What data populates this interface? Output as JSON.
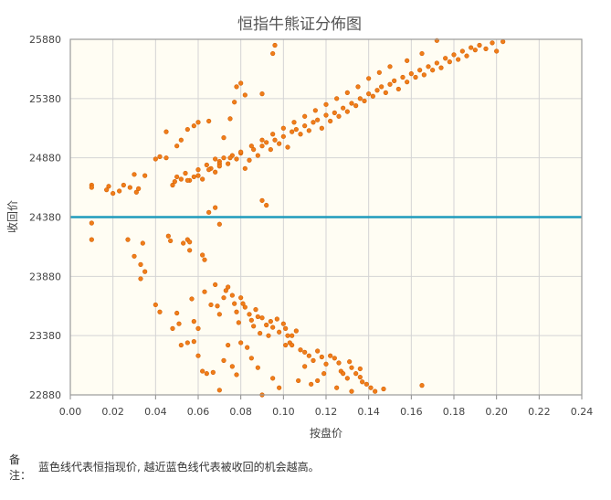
{
  "chart_data": {
    "type": "scatter",
    "title": "恒指牛熊证分佈图",
    "xlabel": "按盘价",
    "ylabel": "收回价",
    "xlim": [
      0,
      0.24
    ],
    "ylim": [
      22880,
      25880
    ],
    "x_ticks": [
      "0.00",
      "0.02",
      "0.04",
      "0.06",
      "0.08",
      "0.10",
      "0.12",
      "0.14",
      "0.16",
      "0.18",
      "0.20",
      "0.22",
      "0.24"
    ],
    "y_ticks": [
      "22880",
      "23380",
      "23880",
      "24380",
      "24880",
      "25380",
      "25880"
    ],
    "reference_line": {
      "y": 24380,
      "color": "#1f9bbd",
      "meaning": "恒指现价"
    },
    "grid": true,
    "background": "#fffdf3",
    "point_color": "#f07d1a",
    "point_stroke": "#d25f00",
    "series": [
      {
        "values": [
          [
            0.01,
            24330
          ],
          [
            0.01,
            24190
          ],
          [
            0.027,
            24190
          ],
          [
            0.03,
            24050
          ],
          [
            0.033,
            23980
          ],
          [
            0.034,
            24160
          ],
          [
            0.035,
            23920
          ],
          [
            0.033,
            23860
          ],
          [
            0.04,
            23640
          ],
          [
            0.042,
            23580
          ],
          [
            0.046,
            24220
          ],
          [
            0.047,
            24180
          ],
          [
            0.05,
            23570
          ],
          [
            0.051,
            23480
          ],
          [
            0.053,
            24160
          ],
          [
            0.055,
            24190
          ],
          [
            0.056,
            24170
          ],
          [
            0.056,
            24100
          ],
          [
            0.057,
            23690
          ],
          [
            0.058,
            23500
          ],
          [
            0.06,
            23440
          ],
          [
            0.062,
            24060
          ],
          [
            0.063,
            24020
          ],
          [
            0.063,
            23750
          ],
          [
            0.066,
            23640
          ],
          [
            0.068,
            23810
          ],
          [
            0.069,
            23630
          ],
          [
            0.07,
            23560
          ],
          [
            0.072,
            23700
          ],
          [
            0.073,
            23760
          ],
          [
            0.074,
            23790
          ],
          [
            0.076,
            23720
          ],
          [
            0.077,
            23650
          ],
          [
            0.078,
            23580
          ],
          [
            0.079,
            23490
          ],
          [
            0.08,
            23700
          ],
          [
            0.081,
            23650
          ],
          [
            0.082,
            23620
          ],
          [
            0.084,
            23560
          ],
          [
            0.085,
            23510
          ],
          [
            0.086,
            23460
          ],
          [
            0.087,
            23600
          ],
          [
            0.088,
            23540
          ],
          [
            0.089,
            23400
          ],
          [
            0.09,
            23530
          ],
          [
            0.092,
            23470
          ],
          [
            0.093,
            23380
          ],
          [
            0.094,
            23500
          ],
          [
            0.095,
            23450
          ],
          [
            0.097,
            23520
          ],
          [
            0.098,
            23410
          ],
          [
            0.1,
            23480
          ],
          [
            0.101,
            23440
          ],
          [
            0.102,
            23380
          ],
          [
            0.103,
            23320
          ],
          [
            0.104,
            23300
          ],
          [
            0.106,
            23420
          ],
          [
            0.108,
            23260
          ],
          [
            0.11,
            23240
          ],
          [
            0.112,
            23210
          ],
          [
            0.114,
            23170
          ],
          [
            0.116,
            23250
          ],
          [
            0.118,
            23200
          ],
          [
            0.12,
            23140
          ],
          [
            0.122,
            23210
          ],
          [
            0.124,
            23190
          ],
          [
            0.126,
            23150
          ],
          [
            0.127,
            23080
          ],
          [
            0.128,
            23060
          ],
          [
            0.13,
            23020
          ],
          [
            0.131,
            23160
          ],
          [
            0.132,
            23110
          ],
          [
            0.134,
            23060
          ],
          [
            0.136,
            23030
          ],
          [
            0.137,
            22990
          ],
          [
            0.139,
            22970
          ],
          [
            0.141,
            22940
          ],
          [
            0.143,
            22910
          ],
          [
            0.147,
            22930
          ],
          [
            0.165,
            22960
          ],
          [
            0.048,
            23440
          ],
          [
            0.052,
            23300
          ],
          [
            0.055,
            23320
          ],
          [
            0.058,
            23330
          ],
          [
            0.06,
            23210
          ],
          [
            0.062,
            23080
          ],
          [
            0.064,
            23060
          ],
          [
            0.067,
            23070
          ],
          [
            0.07,
            22920
          ],
          [
            0.072,
            23170
          ],
          [
            0.074,
            23300
          ],
          [
            0.076,
            23120
          ],
          [
            0.078,
            23050
          ],
          [
            0.08,
            23320
          ],
          [
            0.083,
            23280
          ],
          [
            0.085,
            23190
          ],
          [
            0.088,
            23110
          ],
          [
            0.09,
            22880
          ],
          [
            0.095,
            23020
          ],
          [
            0.098,
            22940
          ],
          [
            0.101,
            23300
          ],
          [
            0.104,
            23380
          ],
          [
            0.107,
            23000
          ],
          [
            0.11,
            23120
          ],
          [
            0.113,
            22970
          ],
          [
            0.116,
            23000
          ],
          [
            0.119,
            23060
          ],
          [
            0.125,
            22940
          ],
          [
            0.132,
            22910
          ],
          [
            0.136,
            23100
          ],
          [
            0.01,
            24650
          ],
          [
            0.01,
            24630
          ],
          [
            0.017,
            24610
          ],
          [
            0.018,
            24640
          ],
          [
            0.02,
            24580
          ],
          [
            0.023,
            24600
          ],
          [
            0.025,
            24650
          ],
          [
            0.028,
            24630
          ],
          [
            0.03,
            24740
          ],
          [
            0.031,
            24590
          ],
          [
            0.032,
            24620
          ],
          [
            0.035,
            24730
          ],
          [
            0.04,
            24870
          ],
          [
            0.042,
            24890
          ],
          [
            0.045,
            24880
          ],
          [
            0.048,
            24650
          ],
          [
            0.049,
            24680
          ],
          [
            0.05,
            24720
          ],
          [
            0.052,
            24700
          ],
          [
            0.054,
            24750
          ],
          [
            0.056,
            24690
          ],
          [
            0.058,
            24720
          ],
          [
            0.06,
            24780
          ],
          [
            0.062,
            24700
          ],
          [
            0.064,
            24820
          ],
          [
            0.066,
            24790
          ],
          [
            0.068,
            24760
          ],
          [
            0.07,
            24850
          ],
          [
            0.072,
            24880
          ],
          [
            0.074,
            24830
          ],
          [
            0.076,
            24900
          ],
          [
            0.078,
            24870
          ],
          [
            0.08,
            24920
          ],
          [
            0.082,
            24790
          ],
          [
            0.084,
            24860
          ],
          [
            0.086,
            24950
          ],
          [
            0.088,
            24900
          ],
          [
            0.09,
            24980
          ],
          [
            0.092,
            25010
          ],
          [
            0.094,
            24950
          ],
          [
            0.096,
            25030
          ],
          [
            0.098,
            25000
          ],
          [
            0.1,
            25060
          ],
          [
            0.102,
            24970
          ],
          [
            0.104,
            25100
          ],
          [
            0.106,
            25120
          ],
          [
            0.108,
            25080
          ],
          [
            0.11,
            25150
          ],
          [
            0.112,
            25110
          ],
          [
            0.114,
            25180
          ],
          [
            0.116,
            25200
          ],
          [
            0.118,
            25130
          ],
          [
            0.12,
            25240
          ],
          [
            0.122,
            25190
          ],
          [
            0.124,
            25260
          ],
          [
            0.126,
            25230
          ],
          [
            0.128,
            25300
          ],
          [
            0.13,
            25270
          ],
          [
            0.132,
            25340
          ],
          [
            0.134,
            25320
          ],
          [
            0.136,
            25380
          ],
          [
            0.138,
            25360
          ],
          [
            0.14,
            25420
          ],
          [
            0.142,
            25400
          ],
          [
            0.144,
            25450
          ],
          [
            0.146,
            25480
          ],
          [
            0.148,
            25430
          ],
          [
            0.15,
            25500
          ],
          [
            0.152,
            25530
          ],
          [
            0.154,
            25460
          ],
          [
            0.156,
            25560
          ],
          [
            0.158,
            25520
          ],
          [
            0.16,
            25590
          ],
          [
            0.162,
            25560
          ],
          [
            0.164,
            25620
          ],
          [
            0.166,
            25580
          ],
          [
            0.168,
            25650
          ],
          [
            0.17,
            25620
          ],
          [
            0.172,
            25680
          ],
          [
            0.174,
            25640
          ],
          [
            0.176,
            25720
          ],
          [
            0.178,
            25690
          ],
          [
            0.18,
            25750
          ],
          [
            0.182,
            25710
          ],
          [
            0.184,
            25780
          ],
          [
            0.186,
            25740
          ],
          [
            0.188,
            25810
          ],
          [
            0.19,
            25790
          ],
          [
            0.192,
            25830
          ],
          [
            0.195,
            25800
          ],
          [
            0.198,
            25850
          ],
          [
            0.2,
            25780
          ],
          [
            0.203,
            25860
          ],
          [
            0.172,
            25870
          ],
          [
            0.165,
            25760
          ],
          [
            0.158,
            25700
          ],
          [
            0.15,
            25650
          ],
          [
            0.145,
            25600
          ],
          [
            0.14,
            25550
          ],
          [
            0.135,
            25480
          ],
          [
            0.13,
            25430
          ],
          [
            0.125,
            25380
          ],
          [
            0.12,
            25330
          ],
          [
            0.115,
            25280
          ],
          [
            0.11,
            25230
          ],
          [
            0.105,
            25180
          ],
          [
            0.1,
            25130
          ],
          [
            0.095,
            25080
          ],
          [
            0.09,
            25030
          ],
          [
            0.085,
            24980
          ],
          [
            0.08,
            24930
          ],
          [
            0.075,
            24880
          ],
          [
            0.07,
            24830
          ],
          [
            0.065,
            24780
          ],
          [
            0.06,
            24730
          ],
          [
            0.055,
            24690
          ],
          [
            0.045,
            25100
          ],
          [
            0.05,
            24980
          ],
          [
            0.052,
            25030
          ],
          [
            0.055,
            25120
          ],
          [
            0.058,
            25150
          ],
          [
            0.06,
            25180
          ],
          [
            0.065,
            25190
          ],
          [
            0.068,
            24870
          ],
          [
            0.07,
            24810
          ],
          [
            0.072,
            25050
          ],
          [
            0.075,
            25210
          ],
          [
            0.077,
            25350
          ],
          [
            0.078,
            25480
          ],
          [
            0.08,
            25510
          ],
          [
            0.082,
            25410
          ],
          [
            0.09,
            25420
          ],
          [
            0.095,
            25760
          ],
          [
            0.096,
            25830
          ],
          [
            0.09,
            24520
          ],
          [
            0.092,
            24480
          ],
          [
            0.065,
            24420
          ],
          [
            0.068,
            24460
          ],
          [
            0.07,
            24320
          ]
        ]
      }
    ]
  },
  "footer": {
    "note_label_1": "备",
    "note_label_2": "注：",
    "note_text": "蓝色线代表恒指现价, 越近蓝色线代表被收回的机会越高。"
  }
}
